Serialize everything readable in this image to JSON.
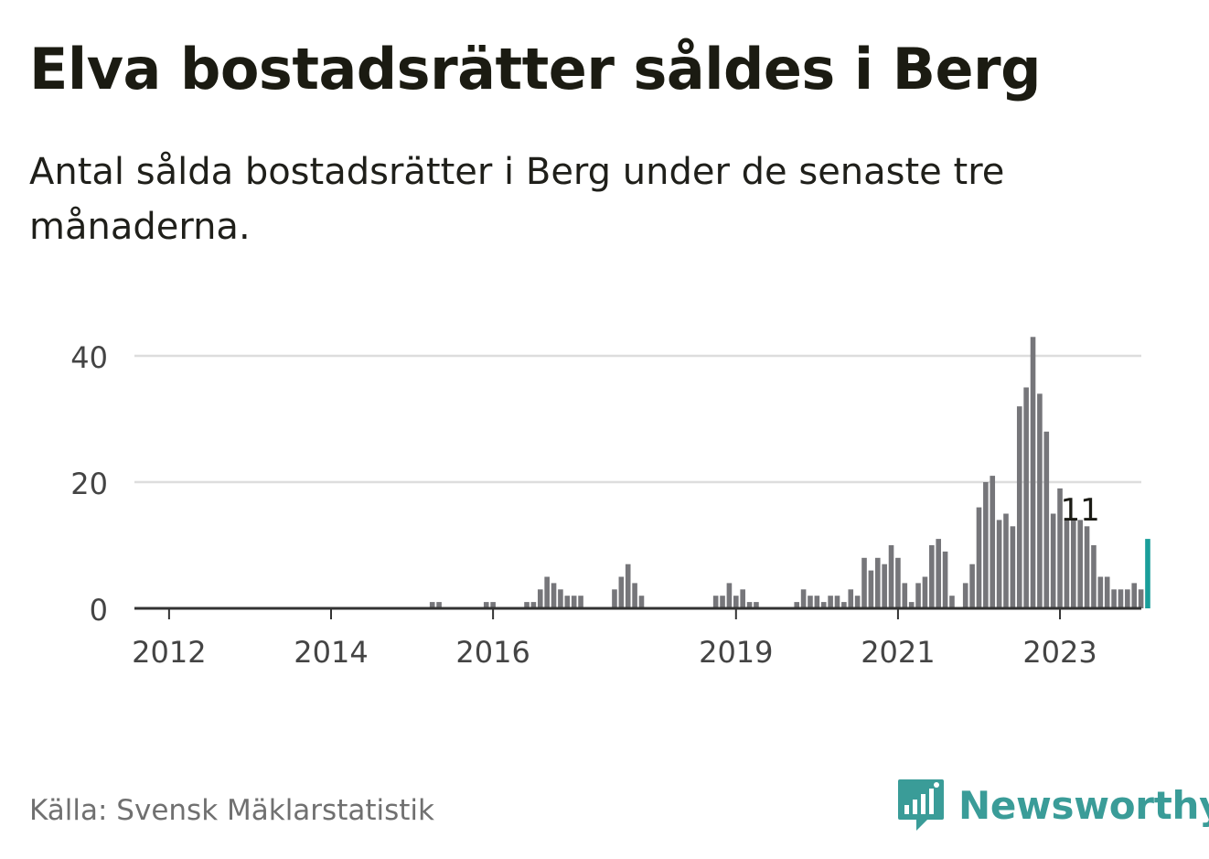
{
  "header": {
    "title": "Elva bostadsrätter såldes i Berg",
    "subtitle": "Antal sålda bostadsrätter i Berg under de senaste tre månaderna."
  },
  "footer": {
    "source": "Källa: Svensk Mäklarstatistik",
    "logo_text": "Newsworthy"
  },
  "colors": {
    "bar": "#76767a",
    "highlight": "#1a9e9a",
    "grid": "#dddddd",
    "axis": "#333333",
    "tick_text": "#444444"
  },
  "chart_data": {
    "type": "bar",
    "title": "Elva bostadsrätter såldes i Berg",
    "subtitle": "Antal sålda bostadsrätter i Berg under de senaste tre månaderna.",
    "xlabel": "",
    "ylabel": "",
    "x_start": "2011-12",
    "ylim": [
      0,
      43
    ],
    "y_ticks": [
      0,
      20,
      40
    ],
    "x_ticks": [
      {
        "label": "2012",
        "date": "2012-01"
      },
      {
        "label": "2014",
        "date": "2014-01"
      },
      {
        "label": "2016",
        "date": "2016-01"
      },
      {
        "label": "2019",
        "date": "2019-01"
      },
      {
        "label": "2021",
        "date": "2021-01"
      },
      {
        "label": "2023",
        "date": "2023-01"
      }
    ],
    "grid": "horizontal",
    "values": [
      0,
      0,
      0,
      0,
      0,
      0,
      0,
      0,
      0,
      0,
      0,
      0,
      0,
      0,
      0,
      0,
      0,
      0,
      0,
      0,
      0,
      0,
      0,
      0,
      0,
      0,
      0,
      0,
      0,
      0,
      0,
      0,
      0,
      0,
      0,
      0,
      0,
      0,
      0,
      0,
      1,
      1,
      0,
      0,
      0,
      0,
      0,
      0,
      1,
      1,
      0,
      0,
      0,
      0,
      1,
      1,
      3,
      5,
      4,
      3,
      2,
      2,
      2,
      0,
      0,
      0,
      0,
      3,
      5,
      7,
      4,
      2,
      0,
      0,
      0,
      0,
      0,
      0,
      0,
      0,
      0,
      0,
      2,
      2,
      4,
      2,
      3,
      1,
      1,
      0,
      0,
      0,
      0,
      0,
      1,
      3,
      2,
      2,
      1,
      2,
      2,
      1,
      3,
      2,
      8,
      6,
      8,
      7,
      10,
      8,
      4,
      1,
      4,
      5,
      10,
      11,
      9,
      2,
      0,
      4,
      7,
      16,
      20,
      21,
      14,
      15,
      13,
      32,
      35,
      43,
      34,
      28,
      15,
      19,
      14,
      14,
      14,
      13,
      10,
      5,
      5,
      3,
      3,
      3,
      4,
      3,
      11
    ],
    "highlight_last": true,
    "annotation": {
      "label": "11",
      "value": 11,
      "date": "2023-04"
    }
  }
}
